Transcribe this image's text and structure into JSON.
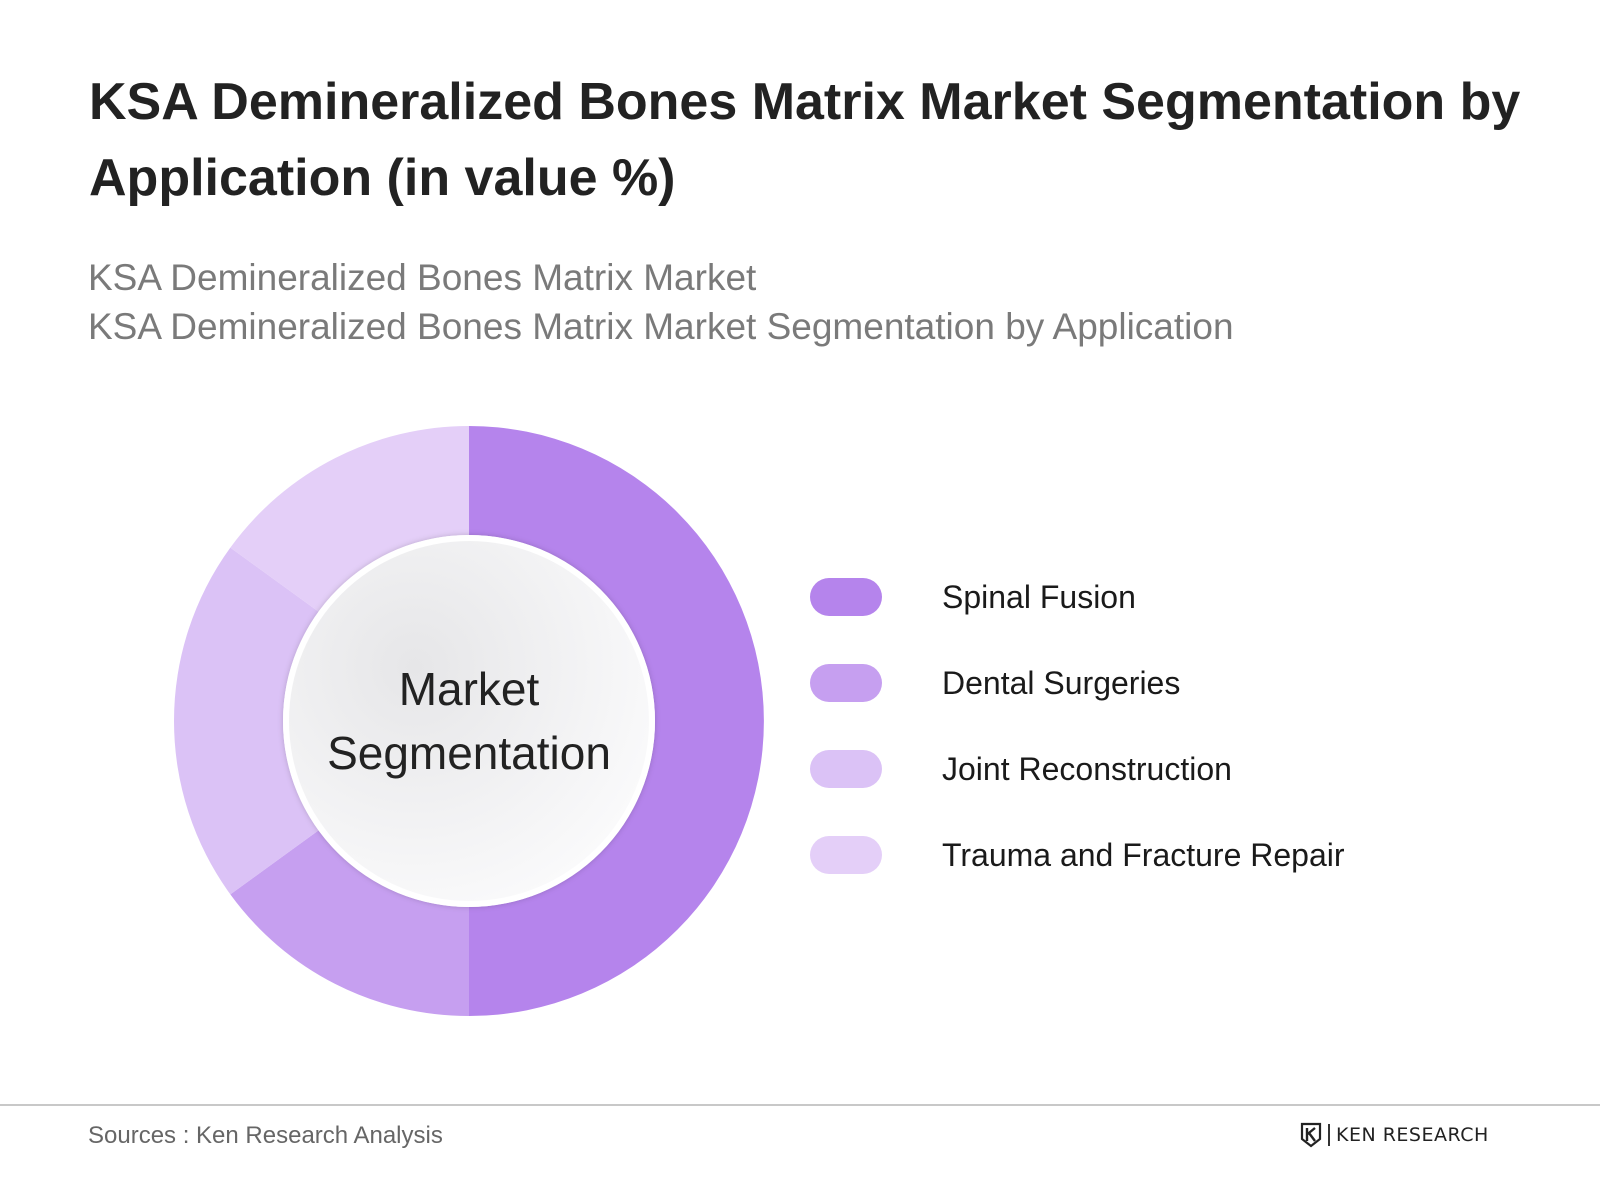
{
  "title": "KSA Demineralized Bones Matrix Market Segmentation by Application (in value %)",
  "subtitles": [
    "KSA Demineralized Bones Matrix Market",
    "KSA Demineralized Bones Matrix Market Segmentation by Application"
  ],
  "center_label": {
    "line1": "Market",
    "line2": "Segmentation"
  },
  "source": "Sources : Ken Research Analysis",
  "brand": {
    "name": "KEN RESEARCH",
    "logo": "ken-research-logo"
  },
  "chart_data": {
    "type": "pie",
    "donut": true,
    "categories": [
      "Spinal Fusion",
      "Dental Surgeries",
      "Joint Reconstruction",
      "Trauma and Fracture Repair"
    ],
    "values": [
      50,
      15,
      20,
      15
    ],
    "unit": "%",
    "colors": [
      "#b584ec",
      "#c69ff0",
      "#dbc2f6",
      "#e4cff8"
    ],
    "legend_position": "right",
    "data_labels": false
  }
}
